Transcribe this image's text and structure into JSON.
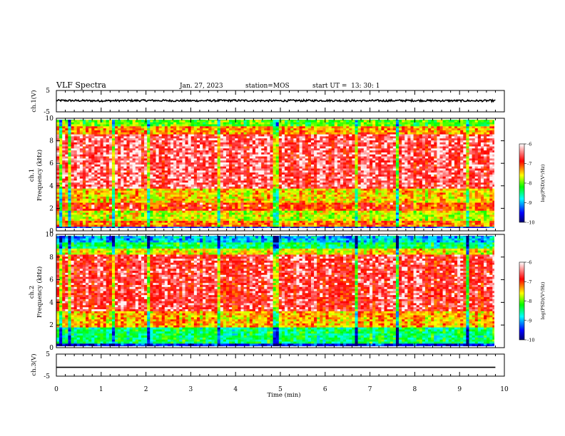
{
  "header": {
    "title": "VLF Spectra",
    "date": "Jan. 27, 2023",
    "station": "station=MOS",
    "start": "start UT =  13: 30: 1"
  },
  "chart_data": [
    {
      "type": "line",
      "panel": "ch1-waveform",
      "ylabel": "ch.1(V)",
      "ylim": [
        -5,
        5
      ],
      "yticks": [
        "5",
        "-5"
      ],
      "xlim": [
        0,
        10
      ],
      "x": [
        0.0,
        1.0,
        2.0,
        3.0,
        4.0,
        5.0,
        6.0,
        7.0,
        8.0,
        9.0,
        9.8
      ],
      "y": [
        0.3,
        0.2,
        0.3,
        0.2,
        0.3,
        0.2,
        0.3,
        0.2,
        0.3,
        0.2,
        0.2
      ]
    },
    {
      "type": "heatmap",
      "panel": "ch1-spectrogram",
      "ylabel": "ch.1",
      "ylabel2": "Frequency (kHz)",
      "ylim": [
        0,
        10
      ],
      "yticks": [
        "0",
        "2",
        "4",
        "6",
        "8",
        "10"
      ],
      "xlim": [
        0,
        9.8
      ],
      "colorbar": {
        "label": "log(PSD)(V²/Hz)",
        "range": [
          -10,
          -6
        ],
        "ticks": [
          "-6",
          "-7",
          "-8",
          "-9",
          "-10"
        ]
      },
      "bands": [
        {
          "from": 9.3,
          "to": 10.0,
          "level": -8.0
        },
        {
          "from": 8.6,
          "to": 9.3,
          "level": -7.3
        },
        {
          "from": 3.8,
          "to": 8.6,
          "level": -6.6
        },
        {
          "from": 2.5,
          "to": 3.8,
          "level": -7.5
        },
        {
          "from": 1.8,
          "to": 2.5,
          "level": -7.0
        },
        {
          "from": 0.9,
          "to": 1.8,
          "level": -7.7
        },
        {
          "from": 0.4,
          "to": 0.9,
          "level": -7.2
        },
        {
          "from": 0.0,
          "to": 0.4,
          "level": -9.4
        }
      ],
      "dark_columns_min": [
        0.1,
        0.27,
        1.26,
        2.05,
        2.09,
        3.62,
        4.85,
        4.9,
        6.7,
        7.62,
        9.2
      ]
    },
    {
      "type": "heatmap",
      "panel": "ch2-spectrogram",
      "ylabel": "ch.2",
      "ylabel2": "Frequency (kHz)",
      "ylim": [
        0,
        10
      ],
      "yticks": [
        "0",
        "2",
        "4",
        "6",
        "8",
        "10"
      ],
      "xlim": [
        0,
        9.8
      ],
      "colorbar": {
        "label": "log(PSD)(V²/Hz)",
        "range": [
          -10,
          -6
        ],
        "ticks": [
          "-6",
          "-7",
          "-8",
          "-9",
          "-10"
        ]
      },
      "bands": [
        {
          "from": 9.3,
          "to": 10.0,
          "level": -8.9
        },
        {
          "from": 8.8,
          "to": 9.3,
          "level": -8.4
        },
        {
          "from": 8.2,
          "to": 8.8,
          "level": -7.6
        },
        {
          "from": 3.2,
          "to": 8.2,
          "level": -6.7
        },
        {
          "from": 1.8,
          "to": 3.2,
          "level": -7.4
        },
        {
          "from": 0.3,
          "to": 1.8,
          "level": -8.4
        },
        {
          "from": 0.0,
          "to": 0.3,
          "level": -9.5
        }
      ],
      "dark_columns_min": [
        0.1,
        0.27,
        1.26,
        2.05,
        2.09,
        3.62,
        4.85,
        4.9,
        6.7,
        7.62,
        9.2
      ]
    },
    {
      "type": "line",
      "panel": "ch3-waveform",
      "ylabel": "ch.3(V)",
      "ylim": [
        -5,
        5
      ],
      "yticks": [
        "5",
        "-5"
      ],
      "xlim": [
        0,
        10
      ],
      "x": [
        0.0,
        9.8
      ],
      "y": [
        -1.0,
        -1.0
      ]
    }
  ],
  "x_axis": {
    "label": "Time (min)",
    "ticks": [
      "0",
      "1",
      "2",
      "3",
      "4",
      "5",
      "6",
      "7",
      "8",
      "9",
      "10"
    ]
  },
  "colors": {
    "scale": [
      "#00007f",
      "#0000ff",
      "#00ffff",
      "#00ff00",
      "#ffff00",
      "#ff0000",
      "#ffffff"
    ]
  }
}
